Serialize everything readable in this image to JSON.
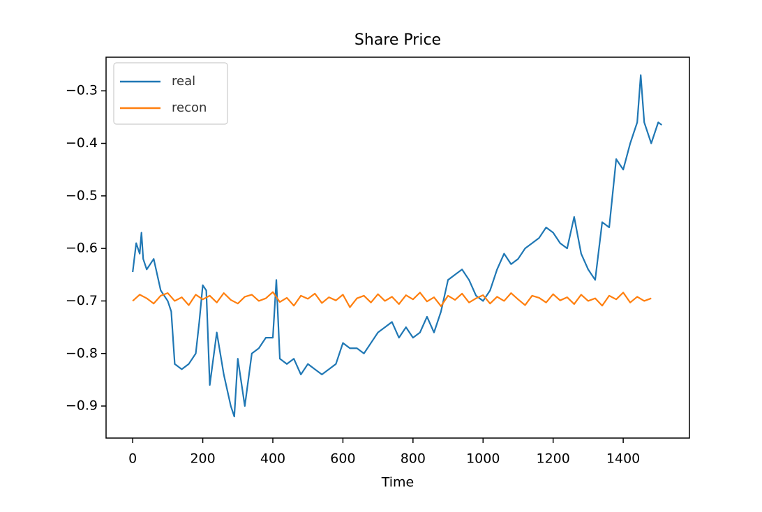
{
  "chart_data": {
    "type": "line",
    "title": "Share Price",
    "x_label": "Time",
    "xlim": [
      -76,
      1589
    ],
    "ylim": [
      -0.961,
      -0.236
    ],
    "xticks": [
      0,
      200,
      400,
      600,
      800,
      1000,
      1200,
      1400
    ],
    "yticks": [
      {
        "value": -0.9,
        "label": "−0.9"
      },
      {
        "value": -0.8,
        "label": "−0.8"
      },
      {
        "value": -0.7,
        "label": "−0.7"
      },
      {
        "value": -0.6,
        "label": "−0.6"
      },
      {
        "value": -0.5,
        "label": "−0.5"
      },
      {
        "value": -0.4,
        "label": "−0.4"
      },
      {
        "value": -0.3,
        "label": "−0.3"
      }
    ],
    "legend": "upper left",
    "series": [
      {
        "name": "real",
        "color": "#1f77b4",
        "x": [
          0,
          10,
          20,
          25,
          30,
          40,
          60,
          80,
          100,
          110,
          120,
          140,
          160,
          180,
          190,
          200,
          210,
          220,
          240,
          260,
          280,
          290,
          300,
          320,
          340,
          360,
          380,
          400,
          410,
          420,
          440,
          460,
          480,
          500,
          520,
          540,
          560,
          580,
          600,
          620,
          640,
          660,
          680,
          700,
          720,
          740,
          760,
          780,
          800,
          820,
          840,
          860,
          880,
          900,
          920,
          940,
          960,
          980,
          1000,
          1020,
          1040,
          1060,
          1080,
          1100,
          1120,
          1140,
          1160,
          1180,
          1200,
          1220,
          1240,
          1260,
          1280,
          1300,
          1320,
          1340,
          1360,
          1380,
          1400,
          1420,
          1440,
          1450,
          1460,
          1480,
          1500,
          1510
        ],
        "values": [
          -0.645,
          -0.59,
          -0.61,
          -0.57,
          -0.62,
          -0.64,
          -0.62,
          -0.68,
          -0.7,
          -0.72,
          -0.82,
          -0.83,
          -0.82,
          -0.8,
          -0.74,
          -0.67,
          -0.68,
          -0.86,
          -0.76,
          -0.84,
          -0.9,
          -0.92,
          -0.81,
          -0.9,
          -0.8,
          -0.79,
          -0.77,
          -0.77,
          -0.66,
          -0.81,
          -0.82,
          -0.81,
          -0.84,
          -0.82,
          -0.83,
          -0.84,
          -0.83,
          -0.82,
          -0.78,
          -0.79,
          -0.79,
          -0.8,
          -0.78,
          -0.76,
          -0.75,
          -0.74,
          -0.77,
          -0.75,
          -0.77,
          -0.76,
          -0.73,
          -0.76,
          -0.72,
          -0.66,
          -0.65,
          -0.64,
          -0.66,
          -0.69,
          -0.7,
          -0.68,
          -0.64,
          -0.61,
          -0.63,
          -0.62,
          -0.6,
          -0.59,
          -0.58,
          -0.56,
          -0.57,
          -0.59,
          -0.6,
          -0.54,
          -0.61,
          -0.64,
          -0.66,
          -0.55,
          -0.56,
          -0.43,
          -0.45,
          -0.4,
          -0.36,
          -0.27,
          -0.36,
          -0.4,
          -0.36,
          -0.365
        ]
      },
      {
        "name": "recon",
        "color": "#ff7f0e",
        "x": [
          0,
          20,
          40,
          60,
          80,
          100,
          120,
          140,
          160,
          180,
          200,
          220,
          240,
          260,
          280,
          300,
          320,
          340,
          360,
          380,
          400,
          420,
          440,
          460,
          480,
          500,
          520,
          540,
          560,
          580,
          600,
          620,
          640,
          660,
          680,
          700,
          720,
          740,
          760,
          780,
          800,
          820,
          840,
          860,
          880,
          900,
          920,
          940,
          960,
          980,
          1000,
          1020,
          1040,
          1060,
          1080,
          1100,
          1120,
          1140,
          1160,
          1180,
          1200,
          1220,
          1240,
          1260,
          1280,
          1300,
          1320,
          1340,
          1360,
          1380,
          1400,
          1420,
          1440,
          1460,
          1480
        ],
        "values": [
          -0.7,
          -0.688,
          -0.695,
          -0.705,
          -0.69,
          -0.685,
          -0.7,
          -0.693,
          -0.708,
          -0.688,
          -0.697,
          -0.69,
          -0.703,
          -0.685,
          -0.698,
          -0.705,
          -0.692,
          -0.688,
          -0.7,
          -0.695,
          -0.683,
          -0.702,
          -0.694,
          -0.709,
          -0.69,
          -0.696,
          -0.686,
          -0.704,
          -0.693,
          -0.699,
          -0.688,
          -0.712,
          -0.695,
          -0.69,
          -0.703,
          -0.687,
          -0.7,
          -0.692,
          -0.706,
          -0.689,
          -0.697,
          -0.684,
          -0.701,
          -0.693,
          -0.71,
          -0.69,
          -0.698,
          -0.686,
          -0.703,
          -0.695,
          -0.689,
          -0.705,
          -0.692,
          -0.7,
          -0.685,
          -0.697,
          -0.708,
          -0.69,
          -0.694,
          -0.703,
          -0.687,
          -0.699,
          -0.693,
          -0.706,
          -0.688,
          -0.7,
          -0.695,
          -0.709,
          -0.69,
          -0.697,
          -0.684,
          -0.703,
          -0.692,
          -0.7,
          -0.695
        ]
      }
    ]
  }
}
